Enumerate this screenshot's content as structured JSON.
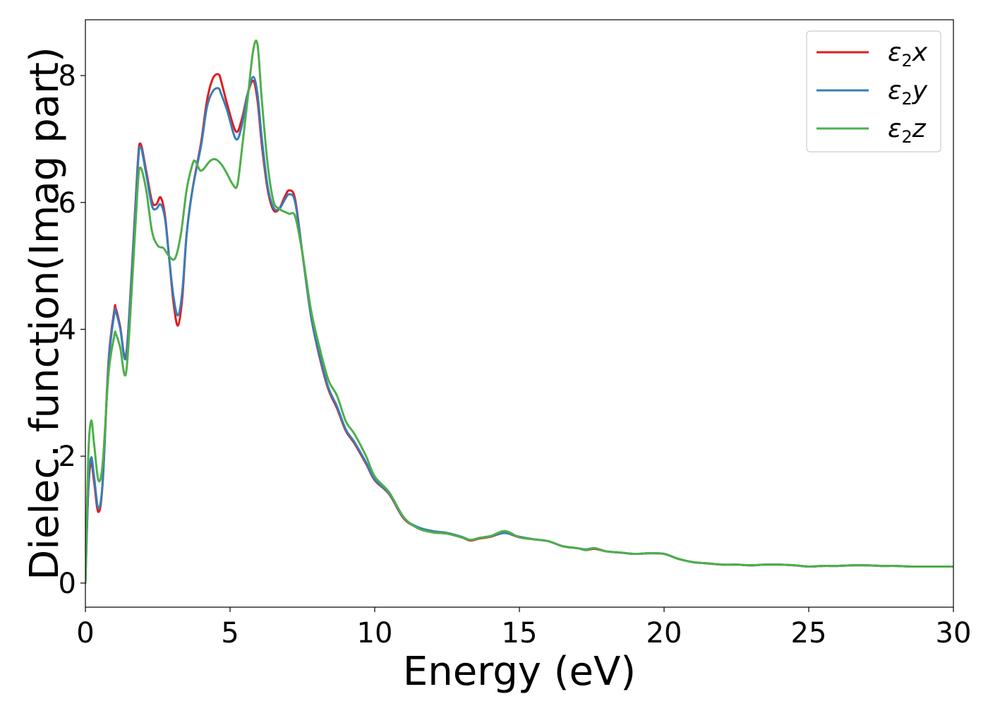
{
  "chart_data": {
    "type": "line",
    "xlabel": "Energy (eV)",
    "ylabel": "Dielec. function(Imag part)",
    "xlim": [
      0,
      30
    ],
    "ylim": [
      -0.38,
      8.88
    ],
    "xticks": [
      0,
      5,
      10,
      15,
      20,
      25,
      30
    ],
    "yticks": [
      0,
      2,
      4,
      6,
      8
    ],
    "grid": false,
    "legend_position": "top-right",
    "series": [
      {
        "name": "ε₂x",
        "legend": {
          "base": "ε",
          "sub": "2",
          "var": "x"
        },
        "color": "#e41a1c",
        "x": [
          0,
          0.1,
          0.2,
          0.3,
          0.45,
          0.6,
          0.8,
          1.0,
          1.05,
          1.2,
          1.4,
          1.6,
          1.8,
          1.9,
          2.1,
          2.3,
          2.45,
          2.6,
          2.75,
          2.9,
          3.05,
          3.2,
          3.35,
          3.5,
          3.7,
          4.0,
          4.2,
          4.4,
          4.6,
          4.7,
          4.9,
          5.2,
          5.4,
          5.6,
          5.8,
          5.95,
          6.1,
          6.3,
          6.5,
          6.7,
          6.9,
          7.05,
          7.25,
          7.5,
          7.8,
          8.1,
          8.4,
          8.7,
          9.0,
          9.3,
          9.7,
          10.0,
          10.5,
          11.0,
          11.5,
          12.0,
          12.5,
          13.0,
          13.3,
          13.6,
          14.0,
          14.5,
          15.0,
          15.5,
          16.0,
          16.5,
          17.0,
          17.3,
          17.6,
          18.0,
          18.5,
          19.0,
          19.5,
          20.0,
          20.5,
          21.0,
          21.5,
          22.0,
          22.5,
          23.0,
          23.5,
          24.0,
          24.5,
          25.0,
          25.5,
          26.0,
          26.5,
          27.0,
          27.5,
          28.0,
          28.5,
          29.0,
          29.5,
          30.0
        ],
        "values": [
          0.0,
          1.45,
          1.9,
          1.6,
          1.12,
          1.6,
          3.5,
          4.3,
          4.33,
          4.05,
          3.58,
          4.9,
          6.55,
          6.93,
          6.5,
          6.02,
          5.97,
          6.08,
          5.8,
          5.1,
          4.4,
          4.06,
          4.5,
          5.5,
          6.2,
          6.95,
          7.6,
          7.95,
          8.02,
          7.9,
          7.55,
          7.12,
          7.3,
          7.7,
          7.92,
          7.6,
          6.9,
          6.2,
          5.88,
          5.9,
          6.1,
          6.19,
          6.05,
          5.2,
          4.2,
          3.55,
          3.05,
          2.75,
          2.4,
          2.2,
          1.88,
          1.62,
          1.4,
          1.02,
          0.87,
          0.8,
          0.78,
          0.72,
          0.67,
          0.7,
          0.73,
          0.79,
          0.72,
          0.69,
          0.66,
          0.58,
          0.55,
          0.52,
          0.54,
          0.5,
          0.48,
          0.46,
          0.47,
          0.46,
          0.38,
          0.33,
          0.31,
          0.29,
          0.29,
          0.28,
          0.29,
          0.29,
          0.28,
          0.26,
          0.27,
          0.27,
          0.28,
          0.28,
          0.27,
          0.27,
          0.26,
          0.26,
          0.26,
          0.26
        ]
      },
      {
        "name": "ε₂y",
        "legend": {
          "base": "ε",
          "sub": "2",
          "var": "y"
        },
        "color": "#377eb8",
        "x": [
          0,
          0.1,
          0.2,
          0.3,
          0.45,
          0.6,
          0.8,
          1.0,
          1.05,
          1.2,
          1.4,
          1.6,
          1.8,
          1.9,
          2.1,
          2.3,
          2.45,
          2.6,
          2.75,
          2.9,
          3.05,
          3.2,
          3.35,
          3.5,
          3.7,
          4.0,
          4.2,
          4.4,
          4.6,
          4.7,
          4.9,
          5.2,
          5.4,
          5.6,
          5.8,
          5.95,
          6.1,
          6.3,
          6.5,
          6.7,
          6.9,
          7.05,
          7.25,
          7.5,
          7.8,
          8.1,
          8.4,
          8.7,
          9.0,
          9.3,
          9.7,
          10.0,
          10.5,
          11.0,
          11.5,
          12.0,
          12.5,
          13.0,
          13.3,
          13.6,
          14.0,
          14.5,
          15.0,
          15.5,
          16.0,
          16.5,
          17.0,
          17.3,
          17.6,
          18.0,
          18.5,
          19.0,
          19.5,
          20.0,
          20.5,
          21.0,
          21.5,
          22.0,
          22.5,
          23.0,
          23.5,
          24.0,
          24.5,
          25.0,
          25.5,
          26.0,
          26.5,
          27.0,
          27.5,
          28.0,
          28.5,
          29.0,
          29.5,
          30.0
        ],
        "values": [
          0.0,
          1.5,
          1.98,
          1.68,
          1.18,
          1.62,
          3.45,
          4.25,
          4.28,
          4.02,
          3.55,
          4.85,
          6.48,
          6.88,
          6.45,
          5.95,
          5.9,
          5.97,
          5.75,
          5.1,
          4.5,
          4.22,
          4.6,
          5.5,
          6.2,
          6.9,
          7.5,
          7.75,
          7.8,
          7.7,
          7.45,
          7.0,
          7.2,
          7.7,
          7.98,
          7.7,
          7.0,
          6.25,
          5.92,
          5.9,
          6.05,
          6.13,
          6.0,
          5.2,
          4.2,
          3.58,
          3.08,
          2.78,
          2.42,
          2.22,
          1.9,
          1.63,
          1.41,
          1.03,
          0.88,
          0.82,
          0.79,
          0.73,
          0.68,
          0.71,
          0.74,
          0.79,
          0.73,
          0.69,
          0.66,
          0.58,
          0.55,
          0.53,
          0.55,
          0.5,
          0.48,
          0.46,
          0.47,
          0.46,
          0.38,
          0.33,
          0.31,
          0.29,
          0.29,
          0.28,
          0.29,
          0.29,
          0.28,
          0.26,
          0.27,
          0.27,
          0.28,
          0.28,
          0.27,
          0.27,
          0.26,
          0.26,
          0.26,
          0.26
        ]
      },
      {
        "name": "ε₂z",
        "legend": {
          "base": "ε",
          "sub": "2",
          "var": "z"
        },
        "color": "#4daf4a",
        "x": [
          0,
          0.1,
          0.2,
          0.3,
          0.45,
          0.6,
          0.8,
          1.0,
          1.05,
          1.2,
          1.4,
          1.6,
          1.8,
          1.9,
          2.1,
          2.3,
          2.5,
          2.7,
          2.9,
          3.1,
          3.3,
          3.5,
          3.7,
          3.8,
          4.0,
          4.3,
          4.5,
          4.7,
          4.9,
          5.1,
          5.25,
          5.4,
          5.6,
          5.8,
          5.95,
          6.1,
          6.3,
          6.5,
          6.7,
          6.9,
          7.05,
          7.25,
          7.5,
          7.8,
          8.1,
          8.4,
          8.7,
          9.0,
          9.3,
          9.7,
          10.0,
          10.5,
          11.0,
          11.5,
          12.0,
          12.5,
          13.0,
          13.3,
          13.6,
          14.0,
          14.5,
          15.0,
          15.5,
          16.0,
          16.5,
          17.0,
          17.3,
          17.6,
          18.0,
          18.5,
          19.0,
          19.5,
          20.0,
          20.5,
          21.0,
          21.5,
          22.0,
          22.5,
          23.0,
          23.5,
          24.0,
          24.5,
          25.0,
          25.5,
          26.0,
          26.5,
          27.0,
          27.5,
          28.0,
          28.5,
          29.0,
          29.5,
          30.0
        ],
        "values": [
          0.0,
          2.0,
          2.56,
          2.2,
          1.62,
          1.9,
          3.3,
          3.9,
          3.93,
          3.72,
          3.3,
          4.6,
          6.2,
          6.55,
          6.2,
          5.55,
          5.32,
          5.28,
          5.15,
          5.12,
          5.5,
          6.2,
          6.6,
          6.65,
          6.5,
          6.65,
          6.68,
          6.6,
          6.45,
          6.28,
          6.27,
          6.8,
          7.6,
          8.4,
          8.48,
          7.6,
          6.6,
          6.02,
          5.9,
          5.85,
          5.82,
          5.78,
          5.2,
          4.3,
          3.7,
          3.2,
          2.95,
          2.55,
          2.35,
          2.0,
          1.68,
          1.43,
          1.04,
          0.86,
          0.8,
          0.78,
          0.72,
          0.68,
          0.71,
          0.74,
          0.82,
          0.72,
          0.69,
          0.66,
          0.58,
          0.55,
          0.52,
          0.55,
          0.5,
          0.48,
          0.46,
          0.47,
          0.46,
          0.38,
          0.33,
          0.31,
          0.29,
          0.29,
          0.28,
          0.29,
          0.29,
          0.28,
          0.26,
          0.27,
          0.27,
          0.28,
          0.28,
          0.27,
          0.27,
          0.26,
          0.26,
          0.26,
          0.26
        ]
      }
    ]
  }
}
